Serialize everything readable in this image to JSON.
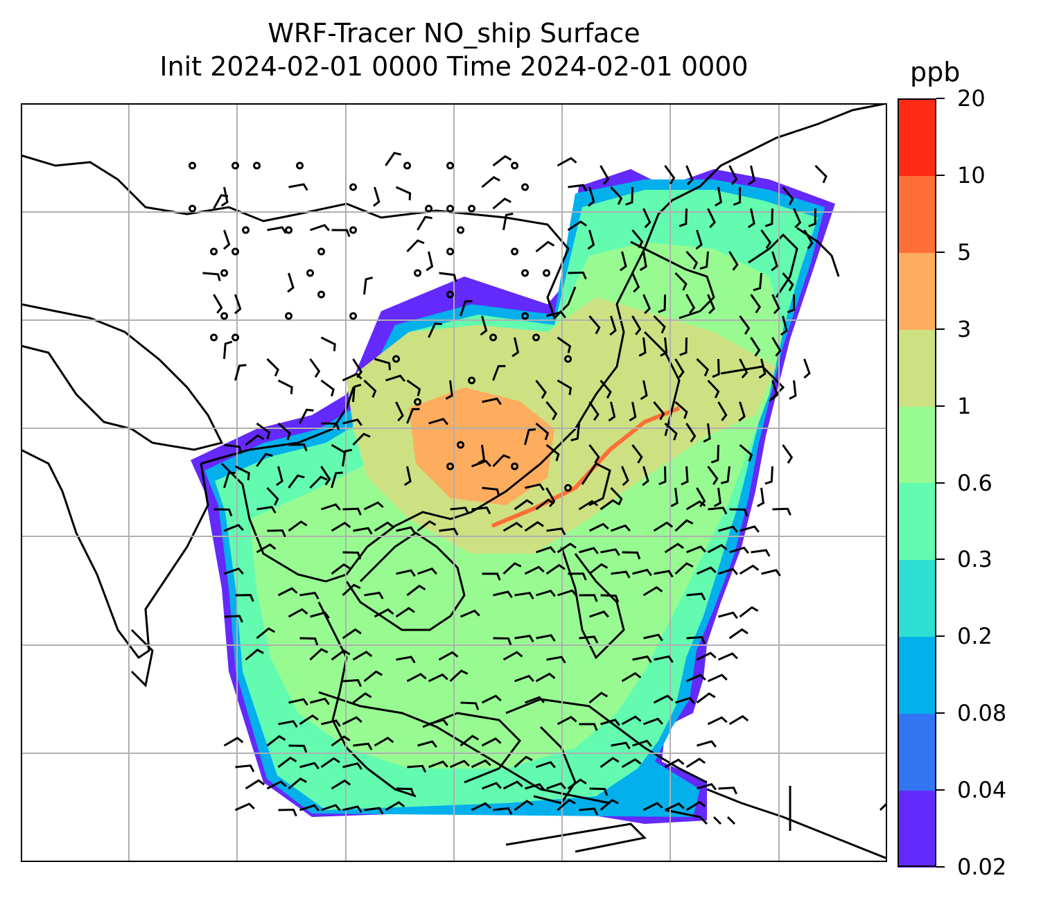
{
  "title": {
    "line1": "WRF-Tracer NO_ship Surface",
    "line2": "Init 2024-02-01 0000 Time 2024-02-01 0000"
  },
  "colorbar": {
    "unit": "ppb",
    "levels": [
      "0.02",
      "0.04",
      "0.08",
      "0.2",
      "0.3",
      "0.6",
      "1",
      "3",
      "5",
      "10",
      "20"
    ],
    "colors": [
      "#6429fb",
      "#3275f3",
      "#03b0ec",
      "#2ee0d3",
      "#62fbb0",
      "#97fb92",
      "#cde182",
      "#feac5e",
      "#ff6f36",
      "#fe2a14"
    ]
  },
  "map": {
    "gridlines": true,
    "land_outline_color": "#000000",
    "gridline_color": "#b0b0b0",
    "overlay": "wind barbs and calm-wind circles"
  }
}
